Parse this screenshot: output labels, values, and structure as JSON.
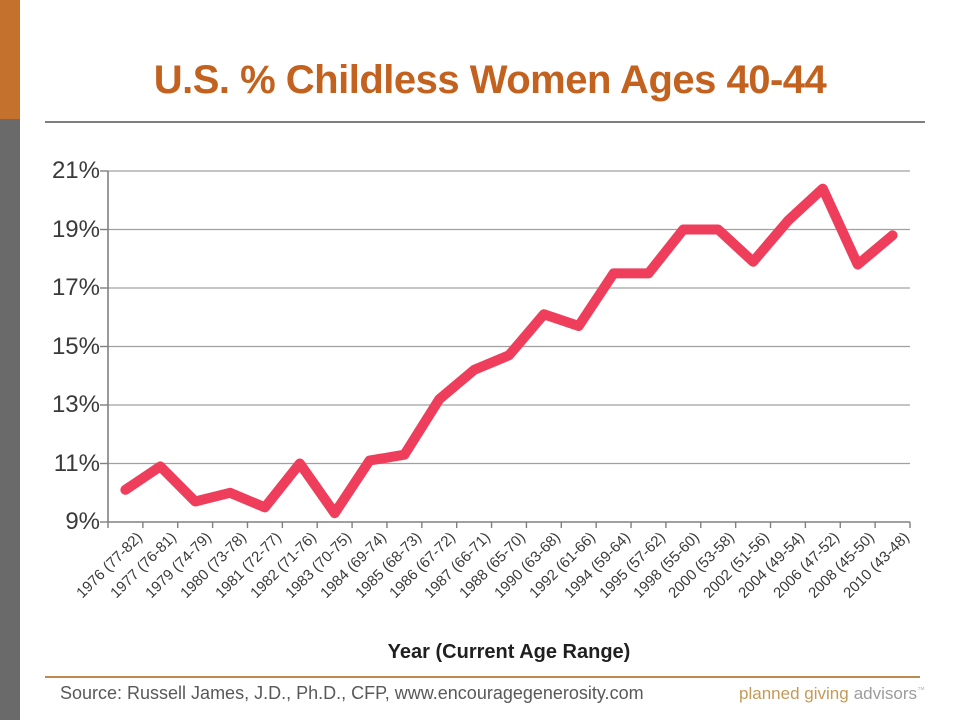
{
  "slide": {
    "title": "U.S. % Childless Women Ages 40-44"
  },
  "chart_data": {
    "type": "line",
    "title": "U.S. % Childless Women Ages 40-44",
    "xlabel": "Year (Current Age Range)",
    "ylabel": "",
    "ylim": [
      9,
      21
    ],
    "y_tick_step": 2,
    "y_tick_suffix": "%",
    "y_tick_labels": [
      "21%",
      "19%",
      "17%",
      "15%",
      "13%",
      "11%",
      "9%"
    ],
    "grid": true,
    "legend": "none",
    "line_color": "#ee3e5c",
    "categories": [
      "1976 (77-82)",
      "1977 (76-81)",
      "1979 (74-79)",
      "1980 (73-78)",
      "1981 (72-77)",
      "1982 (71-76)",
      "1983 (70-75)",
      "1984 (69-74)",
      "1985 (68-73)",
      "1986 (67-72)",
      "1987 (66-71)",
      "1988 (65-70)",
      "1990 (63-68)",
      "1992 (61-66)",
      "1994 (59-64)",
      "1995 (57-62)",
      "1998 (55-60)",
      "2000 (53-58)",
      "2002 (51-56)",
      "2004 (49-54)",
      "2006 (47-52)",
      "2008 (45-50)",
      "2010 (43-48)"
    ],
    "values": [
      10.1,
      10.9,
      9.7,
      10.0,
      9.5,
      11.0,
      9.3,
      11.1,
      11.3,
      13.2,
      14.2,
      14.7,
      16.1,
      15.7,
      17.5,
      17.5,
      19.0,
      19.0,
      17.9,
      19.3,
      20.4,
      17.8,
      18.8
    ]
  },
  "footer": {
    "source": "Source: Russell James, J.D., Ph.D., CFP, www.encouragegenerosity.com",
    "logo": {
      "part1": "planned giving",
      "part2": "advisors",
      "mark": "™"
    }
  },
  "colors": {
    "title_orange": "#c2621e",
    "accent_bar_orange": "#c4712e",
    "accent_bar_gray": "#6a6a6a",
    "series_line": "#ee3e5c",
    "gridline": "#a0a0a0",
    "footer_rule": "#bd8a52",
    "logo_tan": "#c49a58",
    "logo_gray": "#9c9c9c"
  }
}
